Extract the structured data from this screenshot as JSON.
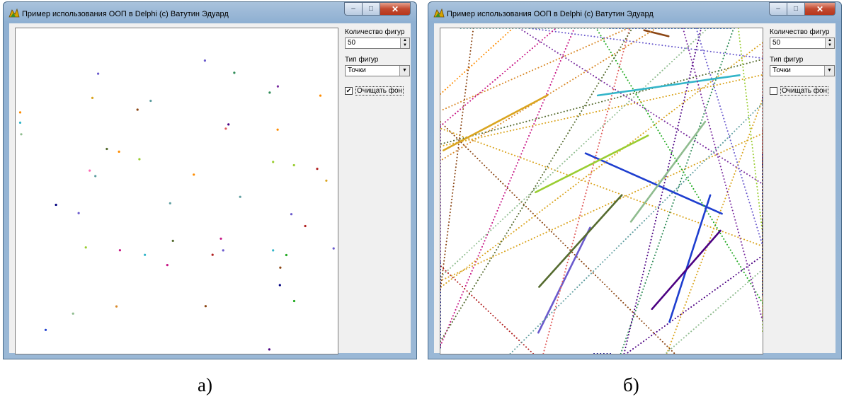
{
  "windows": [
    {
      "title": "Пример использования ООП в Delphi (c) Ватутин Эдуард",
      "count_label": "Количество фигур",
      "count_value": "50",
      "type_label": "Тип фигур",
      "type_value": "Точки",
      "clear_label": "Очищать фон",
      "clear_checked": true,
      "caption": "а)"
    },
    {
      "title": "Пример использования ООП в Delphi (c) Ватутин Эдуард",
      "count_label": "Количество фигур",
      "count_value": "50",
      "type_label": "Тип фигур",
      "type_value": "Точки",
      "clear_label": "Очищать фон",
      "clear_checked": false,
      "caption": "б)"
    }
  ],
  "icons": {
    "app": "delphi-logo-icon",
    "minimize": "minimize-icon",
    "maximize": "maximize-icon",
    "close": "close-icon",
    "spin": "spin-arrows-icon",
    "dropdown": "chevron-down-icon",
    "check": "checkmark-icon"
  },
  "colors": {
    "palette": [
      "#b22222",
      "#1e3ecf",
      "#22aa22",
      "#7b2ea0",
      "#d98a2b",
      "#33b5c9",
      "#8b4513",
      "#c71585",
      "#9acd32",
      "#4b0082",
      "#ff8c00",
      "#2e8b57",
      "#e05a5a",
      "#6a5acd",
      "#8fbc8f",
      "#daa520",
      "#5f9ea0",
      "#ff69b4",
      "#556b2f",
      "#000080"
    ]
  }
}
